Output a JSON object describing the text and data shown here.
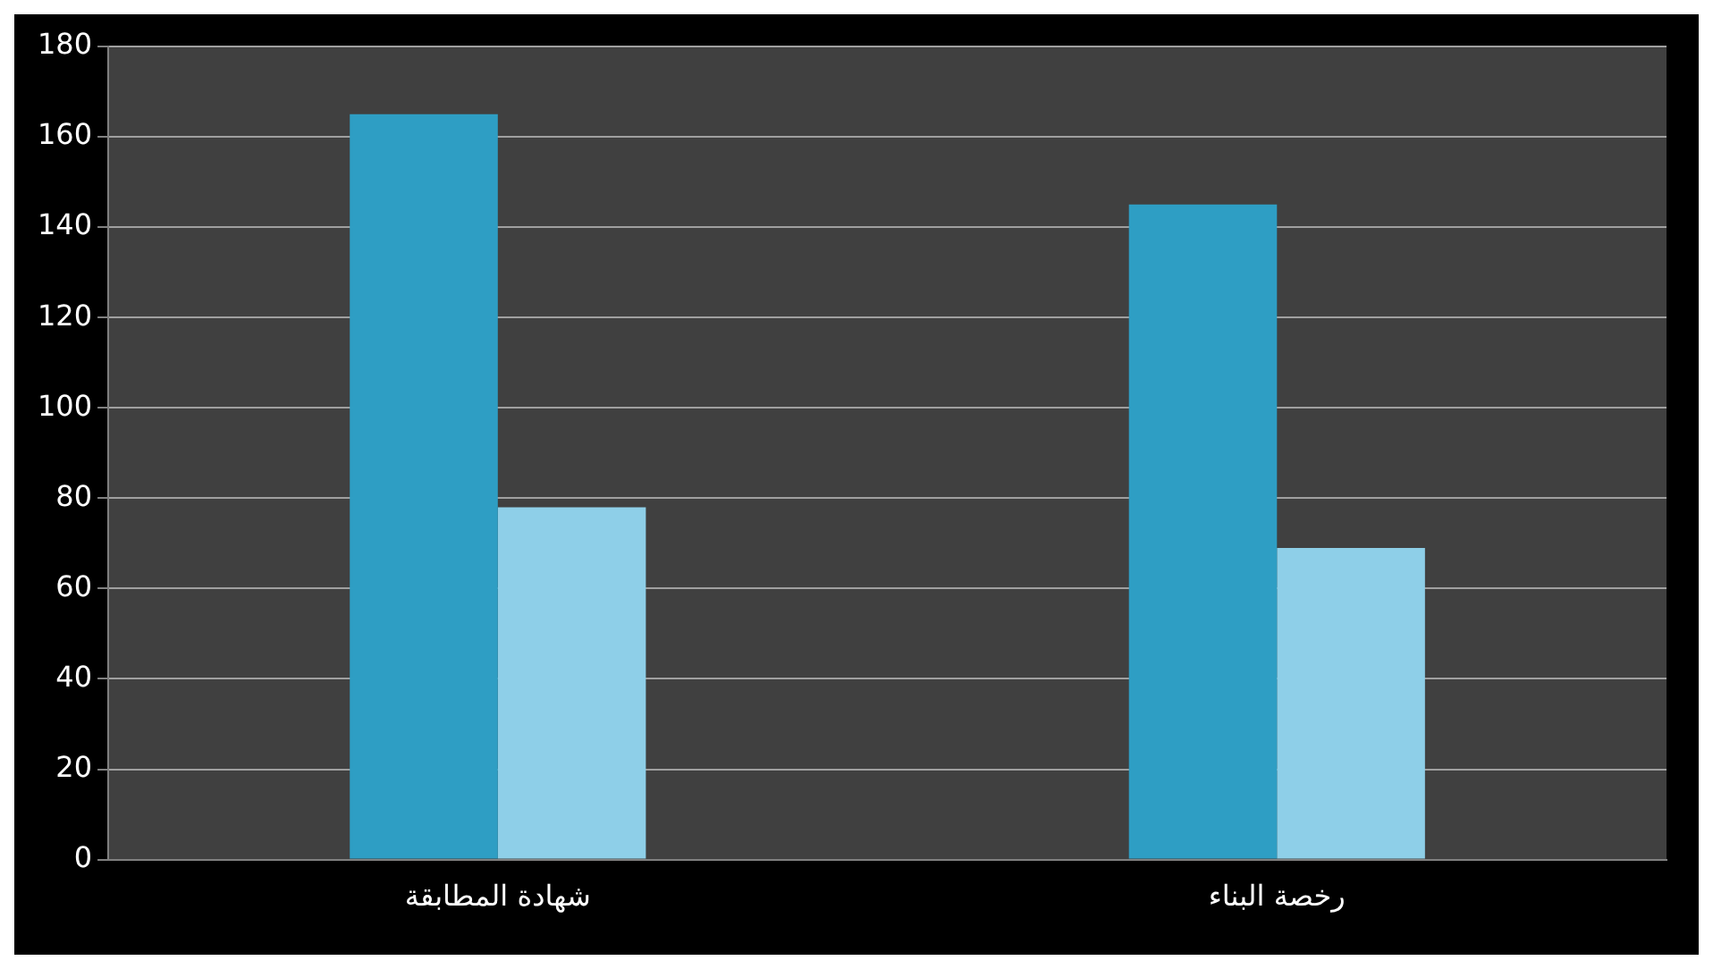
{
  "chart_data": {
    "type": "bar",
    "categories": [
      "شهادة المطابقة",
      "رخصة البناء"
    ],
    "series": [
      {
        "color": "#2e9ec4",
        "values": [
          165,
          145
        ]
      },
      {
        "color": "#8ecfe8",
        "values": [
          78,
          69
        ]
      }
    ],
    "ylim": [
      0,
      180
    ],
    "yticks": [
      0,
      20,
      40,
      60,
      80,
      100,
      120,
      140,
      160,
      180
    ],
    "grid": "y",
    "legend": false
  }
}
